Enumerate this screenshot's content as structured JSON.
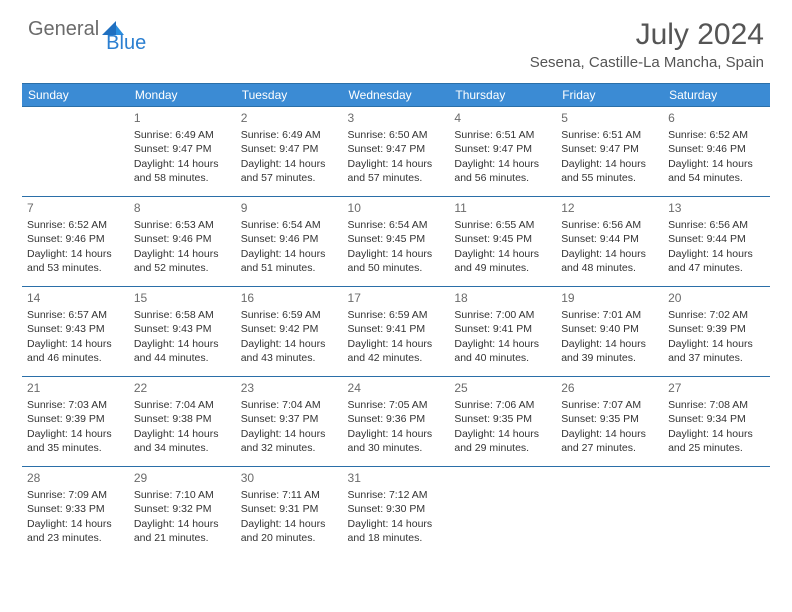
{
  "logo": {
    "part1": "General",
    "part2": "Blue"
  },
  "title": "July 2024",
  "location": "Sesena, Castille-La Mancha, Spain",
  "colors": {
    "header_bg": "#3b8bd4",
    "header_border": "#2b6fa8",
    "logo_gray": "#6b6b6b",
    "logo_blue": "#2b7fd1",
    "text": "#333333"
  },
  "weekdays": [
    "Sunday",
    "Monday",
    "Tuesday",
    "Wednesday",
    "Thursday",
    "Friday",
    "Saturday"
  ],
  "weeks": [
    [
      null,
      {
        "n": "1",
        "sr": "Sunrise: 6:49 AM",
        "ss": "Sunset: 9:47 PM",
        "d1": "Daylight: 14 hours",
        "d2": "and 58 minutes."
      },
      {
        "n": "2",
        "sr": "Sunrise: 6:49 AM",
        "ss": "Sunset: 9:47 PM",
        "d1": "Daylight: 14 hours",
        "d2": "and 57 minutes."
      },
      {
        "n": "3",
        "sr": "Sunrise: 6:50 AM",
        "ss": "Sunset: 9:47 PM",
        "d1": "Daylight: 14 hours",
        "d2": "and 57 minutes."
      },
      {
        "n": "4",
        "sr": "Sunrise: 6:51 AM",
        "ss": "Sunset: 9:47 PM",
        "d1": "Daylight: 14 hours",
        "d2": "and 56 minutes."
      },
      {
        "n": "5",
        "sr": "Sunrise: 6:51 AM",
        "ss": "Sunset: 9:47 PM",
        "d1": "Daylight: 14 hours",
        "d2": "and 55 minutes."
      },
      {
        "n": "6",
        "sr": "Sunrise: 6:52 AM",
        "ss": "Sunset: 9:46 PM",
        "d1": "Daylight: 14 hours",
        "d2": "and 54 minutes."
      }
    ],
    [
      {
        "n": "7",
        "sr": "Sunrise: 6:52 AM",
        "ss": "Sunset: 9:46 PM",
        "d1": "Daylight: 14 hours",
        "d2": "and 53 minutes."
      },
      {
        "n": "8",
        "sr": "Sunrise: 6:53 AM",
        "ss": "Sunset: 9:46 PM",
        "d1": "Daylight: 14 hours",
        "d2": "and 52 minutes."
      },
      {
        "n": "9",
        "sr": "Sunrise: 6:54 AM",
        "ss": "Sunset: 9:46 PM",
        "d1": "Daylight: 14 hours",
        "d2": "and 51 minutes."
      },
      {
        "n": "10",
        "sr": "Sunrise: 6:54 AM",
        "ss": "Sunset: 9:45 PM",
        "d1": "Daylight: 14 hours",
        "d2": "and 50 minutes."
      },
      {
        "n": "11",
        "sr": "Sunrise: 6:55 AM",
        "ss": "Sunset: 9:45 PM",
        "d1": "Daylight: 14 hours",
        "d2": "and 49 minutes."
      },
      {
        "n": "12",
        "sr": "Sunrise: 6:56 AM",
        "ss": "Sunset: 9:44 PM",
        "d1": "Daylight: 14 hours",
        "d2": "and 48 minutes."
      },
      {
        "n": "13",
        "sr": "Sunrise: 6:56 AM",
        "ss": "Sunset: 9:44 PM",
        "d1": "Daylight: 14 hours",
        "d2": "and 47 minutes."
      }
    ],
    [
      {
        "n": "14",
        "sr": "Sunrise: 6:57 AM",
        "ss": "Sunset: 9:43 PM",
        "d1": "Daylight: 14 hours",
        "d2": "and 46 minutes."
      },
      {
        "n": "15",
        "sr": "Sunrise: 6:58 AM",
        "ss": "Sunset: 9:43 PM",
        "d1": "Daylight: 14 hours",
        "d2": "and 44 minutes."
      },
      {
        "n": "16",
        "sr": "Sunrise: 6:59 AM",
        "ss": "Sunset: 9:42 PM",
        "d1": "Daylight: 14 hours",
        "d2": "and 43 minutes."
      },
      {
        "n": "17",
        "sr": "Sunrise: 6:59 AM",
        "ss": "Sunset: 9:41 PM",
        "d1": "Daylight: 14 hours",
        "d2": "and 42 minutes."
      },
      {
        "n": "18",
        "sr": "Sunrise: 7:00 AM",
        "ss": "Sunset: 9:41 PM",
        "d1": "Daylight: 14 hours",
        "d2": "and 40 minutes."
      },
      {
        "n": "19",
        "sr": "Sunrise: 7:01 AM",
        "ss": "Sunset: 9:40 PM",
        "d1": "Daylight: 14 hours",
        "d2": "and 39 minutes."
      },
      {
        "n": "20",
        "sr": "Sunrise: 7:02 AM",
        "ss": "Sunset: 9:39 PM",
        "d1": "Daylight: 14 hours",
        "d2": "and 37 minutes."
      }
    ],
    [
      {
        "n": "21",
        "sr": "Sunrise: 7:03 AM",
        "ss": "Sunset: 9:39 PM",
        "d1": "Daylight: 14 hours",
        "d2": "and 35 minutes."
      },
      {
        "n": "22",
        "sr": "Sunrise: 7:04 AM",
        "ss": "Sunset: 9:38 PM",
        "d1": "Daylight: 14 hours",
        "d2": "and 34 minutes."
      },
      {
        "n": "23",
        "sr": "Sunrise: 7:04 AM",
        "ss": "Sunset: 9:37 PM",
        "d1": "Daylight: 14 hours",
        "d2": "and 32 minutes."
      },
      {
        "n": "24",
        "sr": "Sunrise: 7:05 AM",
        "ss": "Sunset: 9:36 PM",
        "d1": "Daylight: 14 hours",
        "d2": "and 30 minutes."
      },
      {
        "n": "25",
        "sr": "Sunrise: 7:06 AM",
        "ss": "Sunset: 9:35 PM",
        "d1": "Daylight: 14 hours",
        "d2": "and 29 minutes."
      },
      {
        "n": "26",
        "sr": "Sunrise: 7:07 AM",
        "ss": "Sunset: 9:35 PM",
        "d1": "Daylight: 14 hours",
        "d2": "and 27 minutes."
      },
      {
        "n": "27",
        "sr": "Sunrise: 7:08 AM",
        "ss": "Sunset: 9:34 PM",
        "d1": "Daylight: 14 hours",
        "d2": "and 25 minutes."
      }
    ],
    [
      {
        "n": "28",
        "sr": "Sunrise: 7:09 AM",
        "ss": "Sunset: 9:33 PM",
        "d1": "Daylight: 14 hours",
        "d2": "and 23 minutes."
      },
      {
        "n": "29",
        "sr": "Sunrise: 7:10 AM",
        "ss": "Sunset: 9:32 PM",
        "d1": "Daylight: 14 hours",
        "d2": "and 21 minutes."
      },
      {
        "n": "30",
        "sr": "Sunrise: 7:11 AM",
        "ss": "Sunset: 9:31 PM",
        "d1": "Daylight: 14 hours",
        "d2": "and 20 minutes."
      },
      {
        "n": "31",
        "sr": "Sunrise: 7:12 AM",
        "ss": "Sunset: 9:30 PM",
        "d1": "Daylight: 14 hours",
        "d2": "and 18 minutes."
      },
      null,
      null,
      null
    ]
  ]
}
